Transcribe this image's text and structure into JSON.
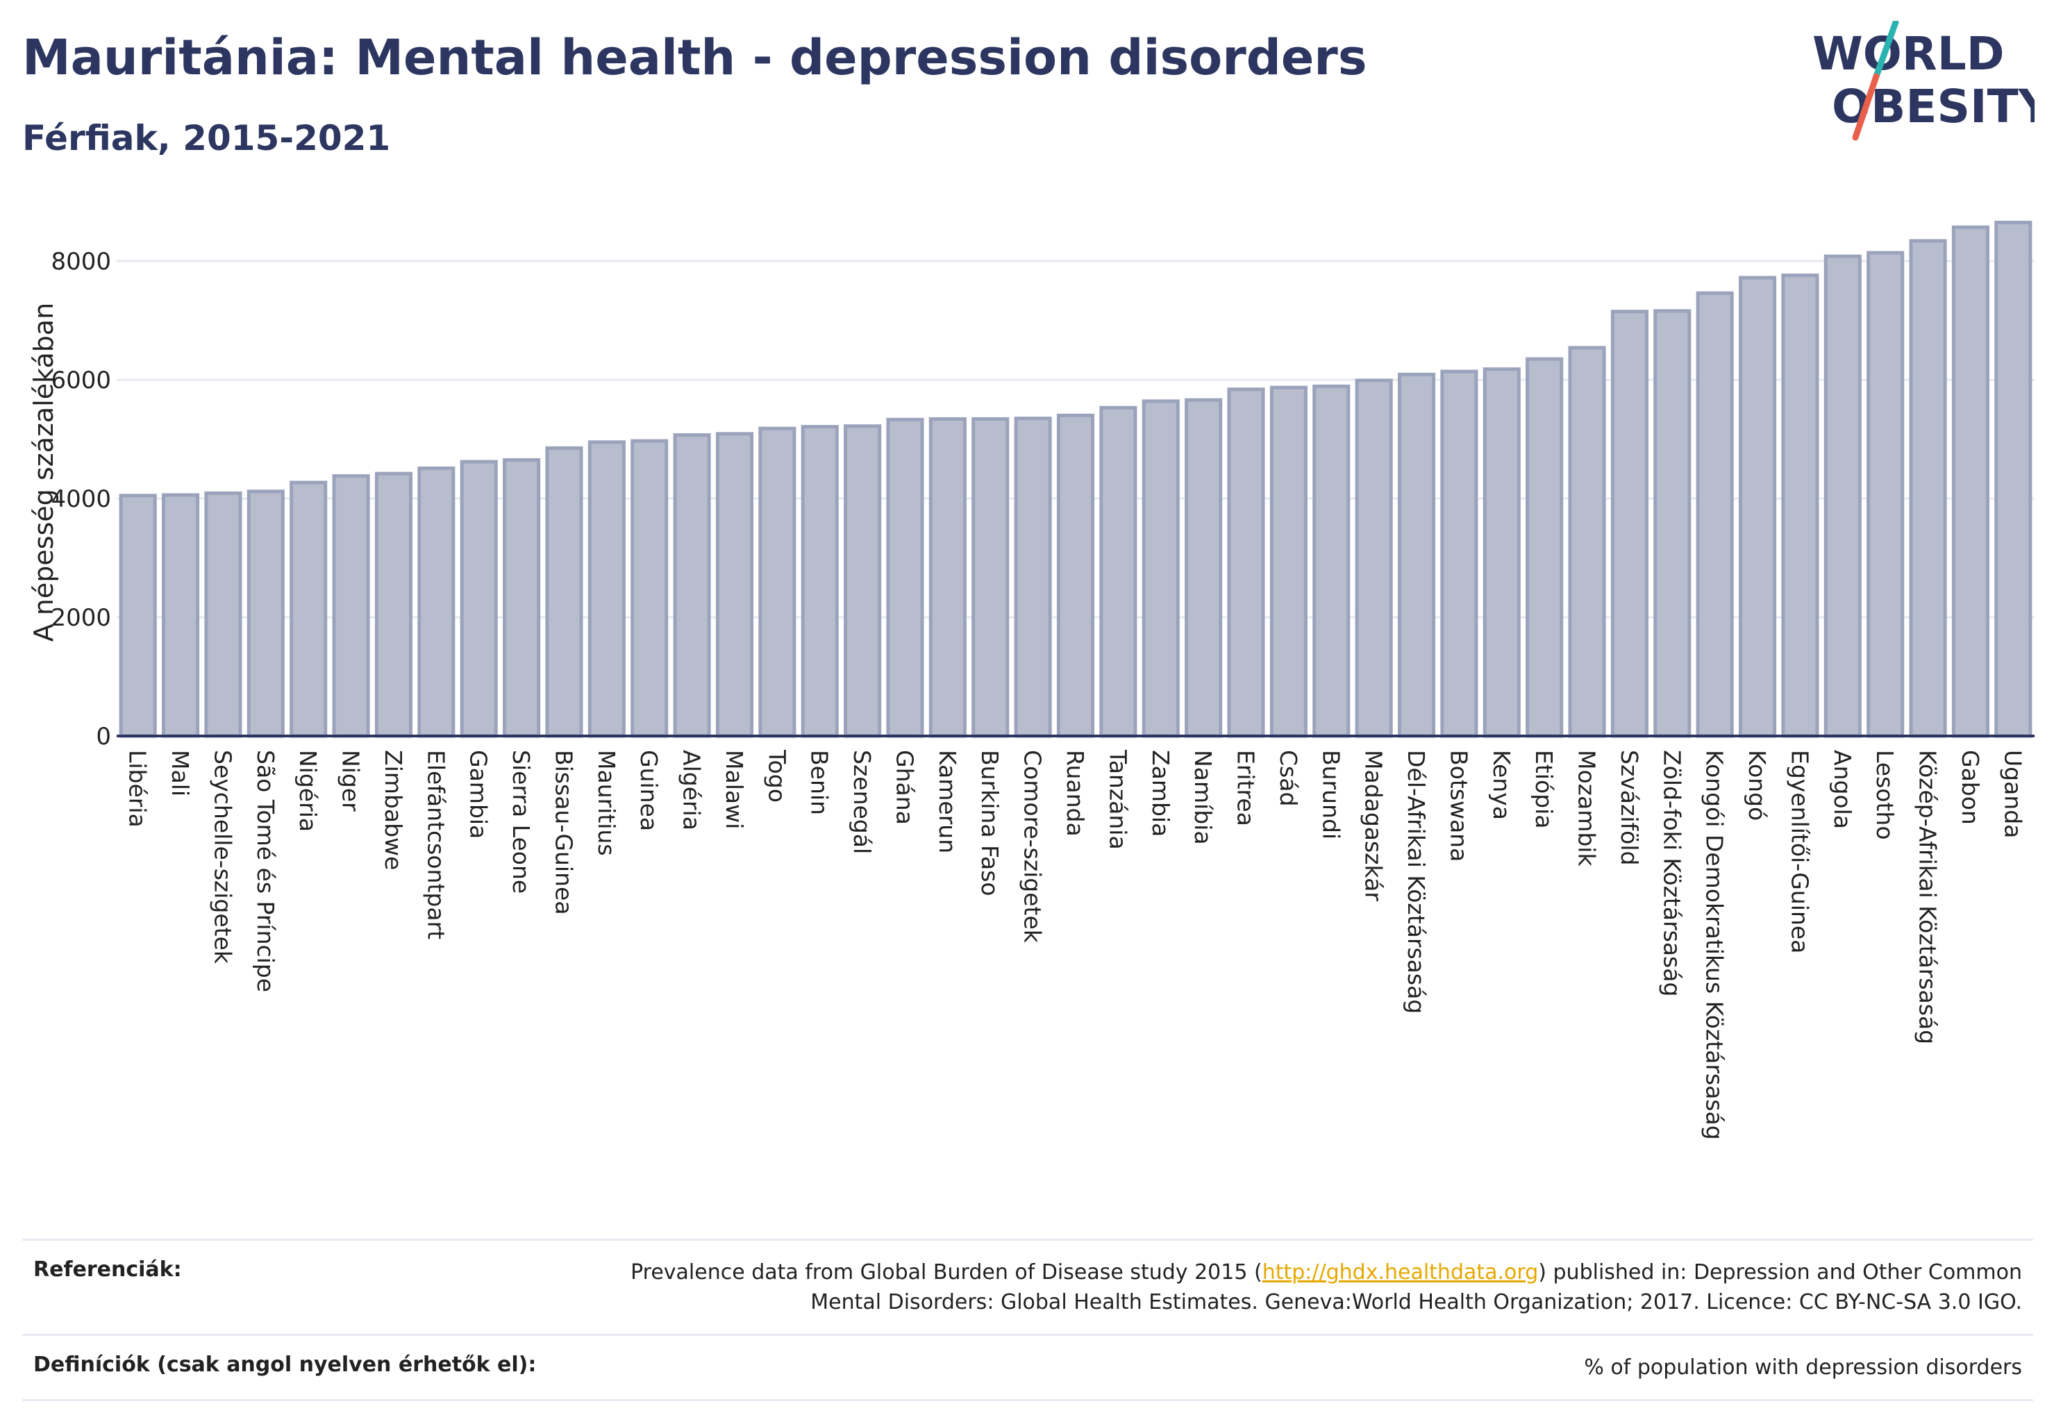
{
  "header": {
    "title": "Mauritánia: Mental health - depression disorders",
    "subtitle": "Férfiak, 2015-2021"
  },
  "logo": {
    "line1": "WORLD",
    "line2": "OBESITY",
    "colors": {
      "text": "#2c3660",
      "slash_teal": "#2bb3b1",
      "slash_red": "#e8604c"
    }
  },
  "chart_data": {
    "type": "bar",
    "title": "",
    "xlabel": "",
    "ylabel": "A népesség százalékában",
    "ylim": [
      0,
      8700
    ],
    "yticks": [
      0,
      2000,
      4000,
      6000,
      8000
    ],
    "ytick_labels": [
      "0",
      "2000",
      "4000",
      "6000",
      "8000"
    ],
    "grid": true,
    "legend": "none",
    "bar_color": "#b8bdcd",
    "bar_edge_color": "#9ba3bc",
    "categories": [
      "Libéria",
      "Mali",
      "Seychelle-szigetek",
      "São Tomé és Príncipe",
      "Nigéria",
      "Niger",
      "Zimbabwe",
      "Elefántcsontpart",
      "Gambia",
      "Sierra Leone",
      "Bissau-Guinea",
      "Mauritius",
      "Guinea",
      "Algéria",
      "Malawi",
      "Togo",
      "Benin",
      "Szenegál",
      "Ghána",
      "Kamerun",
      "Burkina Faso",
      "Comore-szigetek",
      "Ruanda",
      "Tanzánia",
      "Zambia",
      "Namíbia",
      "Eritrea",
      "Csád",
      "Burundi",
      "Madagaszkár",
      "Dél-Afrikai Köztársaság",
      "Botswana",
      "Kenya",
      "Etiópia",
      "Mozambik",
      "Szváziföld",
      "Zöld-foki Köztársaság",
      "Kongói Demokratikus Köztársaság",
      "Kongó",
      "Egyenlítői-Guinea",
      "Angola",
      "Lesotho",
      "Közép-Afrikai Köztársaság",
      "Gabon",
      "Uganda"
    ],
    "values": [
      4050,
      4060,
      4090,
      4120,
      4270,
      4380,
      4420,
      4510,
      4620,
      4650,
      4850,
      4950,
      4970,
      5070,
      5090,
      5180,
      5210,
      5220,
      5330,
      5340,
      5340,
      5350,
      5400,
      5530,
      5640,
      5660,
      5840,
      5870,
      5890,
      5990,
      6090,
      6140,
      6180,
      6350,
      6540,
      7150,
      7160,
      7460,
      7720,
      7760,
      8080,
      8140,
      8340,
      8570,
      8650
    ]
  },
  "footer": {
    "references_label": "Referenciák:",
    "references_text_before": "Prevalence data from Global Burden of Disease study 2015 (",
    "references_link": "http://ghdx.healthdata.org",
    "references_text_after": ") published in: Depression and Other Common Mental Disorders: Global Health Estimates. Geneva:World Health Organization; 2017. Licence: CC BY-NC-SA 3.0 IGO.",
    "definitions_label": "Definíciók (csak angol nyelven érhetők el):",
    "definitions_text": "% of population with depression disorders"
  }
}
